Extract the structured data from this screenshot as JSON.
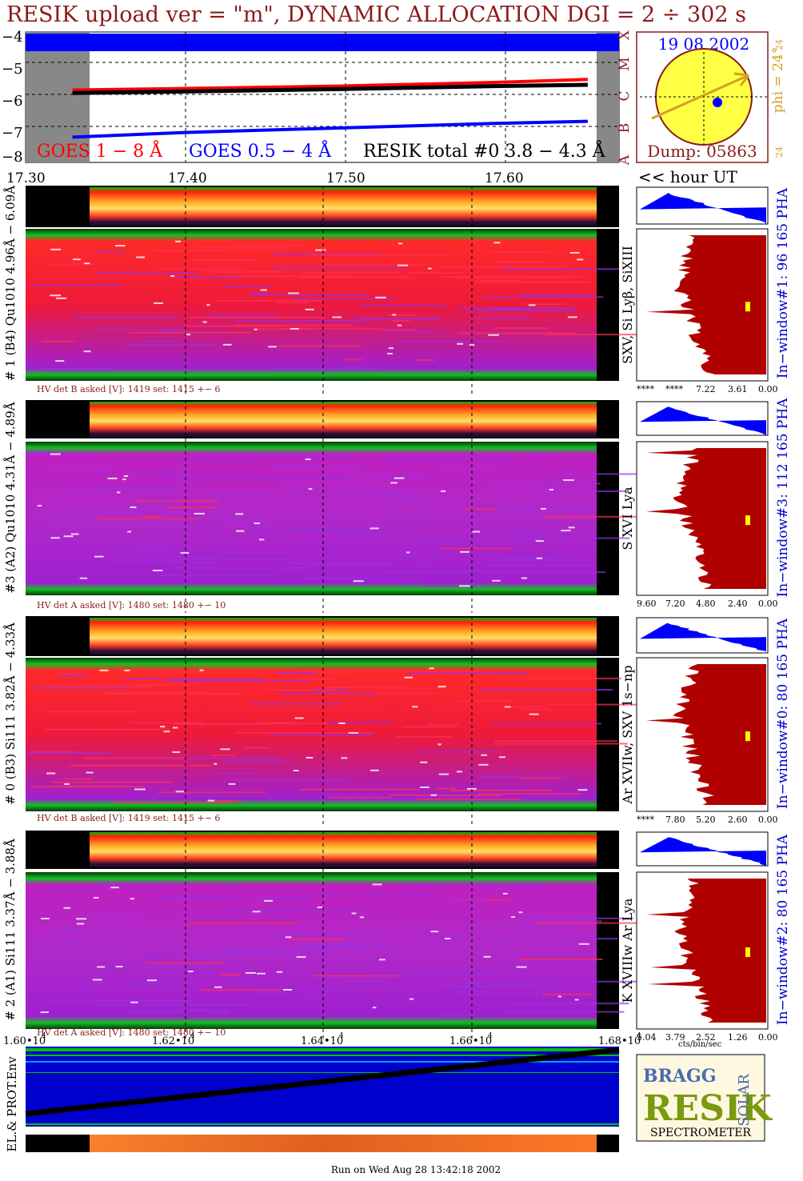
{
  "header": {
    "title": "RESIK upload ver = \"m\", DYNAMIC ALLOCATION  DGI =   2 ÷ 302 s"
  },
  "goes_panel": {
    "yticks": [
      "−4",
      "−5",
      "−6",
      "−7",
      "−8"
    ],
    "class_letters": [
      "X",
      "M",
      "C",
      "B",
      "A"
    ],
    "legend_goes18": "GOES 1 − 8 Å",
    "legend_goes054": "GOES 0.5 − 4 Å",
    "legend_resik": "RESIK total #0  3.8 − 4.3 Å"
  },
  "sun_panel": {
    "date": "19 08 2002",
    "phi": "phi = 24°",
    "phi_small_top": "24",
    "phi_small_bottom": "24",
    "dump": "Dump: 05863"
  },
  "time_axis": {
    "labels": [
      "17.30",
      "17.40",
      "17.50",
      "17.60"
    ],
    "unit": "<< hour UT"
  },
  "detectors": [
    {
      "left_label": "# 1 (B4) Qu1010 4.96Å − 6.09Å",
      "lines_label": "SXV, Si Lyβ, SiXIII",
      "window_label": "In−window#1:  96 165  PHA",
      "hv": "HV det B asked [V]:  1419 set:  1415  +−    6",
      "pha_ticks": [
        "****",
        "****",
        "7.22",
        "3.61",
        "0.00"
      ]
    },
    {
      "left_label": "#3 (A2) Qu1010  4.31Å − 4.89Å",
      "lines_label": "S XVI Lya",
      "window_label": "In−window#3:  112 165  PHA",
      "hv": "HV det A asked [V]:  1480 set:  1480  +−    10",
      "pha_ticks": [
        "9.60",
        "7.20",
        "4.80",
        "2.40",
        "0.00"
      ]
    },
    {
      "left_label": "# 0 (B3) Si111  3.82Å − 4.33Å",
      "lines_label": "Ar XVIIw,  SXV 1s−np",
      "window_label": "In−window#0:  80 165  PHA",
      "hv": "HV det B asked [V]:  1419 set:  1415  +−    6",
      "pha_ticks": [
        "****",
        "7.80",
        "5.20",
        "2.60",
        "0.00"
      ]
    },
    {
      "left_label": "# 2 (A1) Si111  3.37Å − 3.88Å",
      "lines_label": "K XVIIIw  Ar Lya",
      "window_label": "In−window#2:  80 165  PHA",
      "hv": "HV det A asked [V]:  1480 set:  1480  +−    10",
      "pha_ticks": [
        "5.04",
        "3.79",
        "2.52",
        "1.26",
        "0.00"
      ]
    }
  ],
  "pha_unit": "cts/bin/sec",
  "bottom_axis": {
    "labels": [
      "1.60•10",
      "1.62•10",
      "1.64•10",
      "1.66•10",
      "1.68•10"
    ],
    "exponent": "4"
  },
  "env_label": "EL.& PROT.Env",
  "logo": {
    "bragg": "BRAGG",
    "resik": "RESIK",
    "solar": "SOLAR",
    "spectrometer": "SPECTROMETER"
  },
  "footer": "Run on Wed Aug 28 13:42:18 2002",
  "colors": {
    "maroon": "#8b1a1a",
    "goes_long": "#ff0000",
    "goes_short": "#0000ff",
    "resik": "#000000",
    "pha_fill": "#b00000",
    "pha_blue": "#0000ff",
    "sun": "#ffff44",
    "phi": "#d4a020"
  },
  "chart_data": {
    "type": "line",
    "title": "RESIK upload ver = \"m\", DYNAMIC ALLOCATION  DGI =   2 ÷ 302 s",
    "xlabel": "<< hour UT",
    "x": [
      17.33,
      17.4,
      17.5,
      17.6,
      17.66
    ],
    "xlim": [
      17.3,
      17.68
    ],
    "ylim": [
      -8,
      -4
    ],
    "series": [
      {
        "name": "GOES 1 − 8 Å",
        "values": [
          -5.75,
          -5.7,
          -5.62,
          -5.5,
          -5.4
        ]
      },
      {
        "name": "GOES 0.5 − 4 Å",
        "values": [
          -7.3,
          -7.15,
          -7.0,
          -6.85,
          -6.78
        ]
      },
      {
        "name": "RESIK total #0  3.8 − 4.3 Å",
        "values": [
          -5.85,
          -5.8,
          -5.72,
          -5.62,
          -5.58
        ]
      }
    ]
  }
}
